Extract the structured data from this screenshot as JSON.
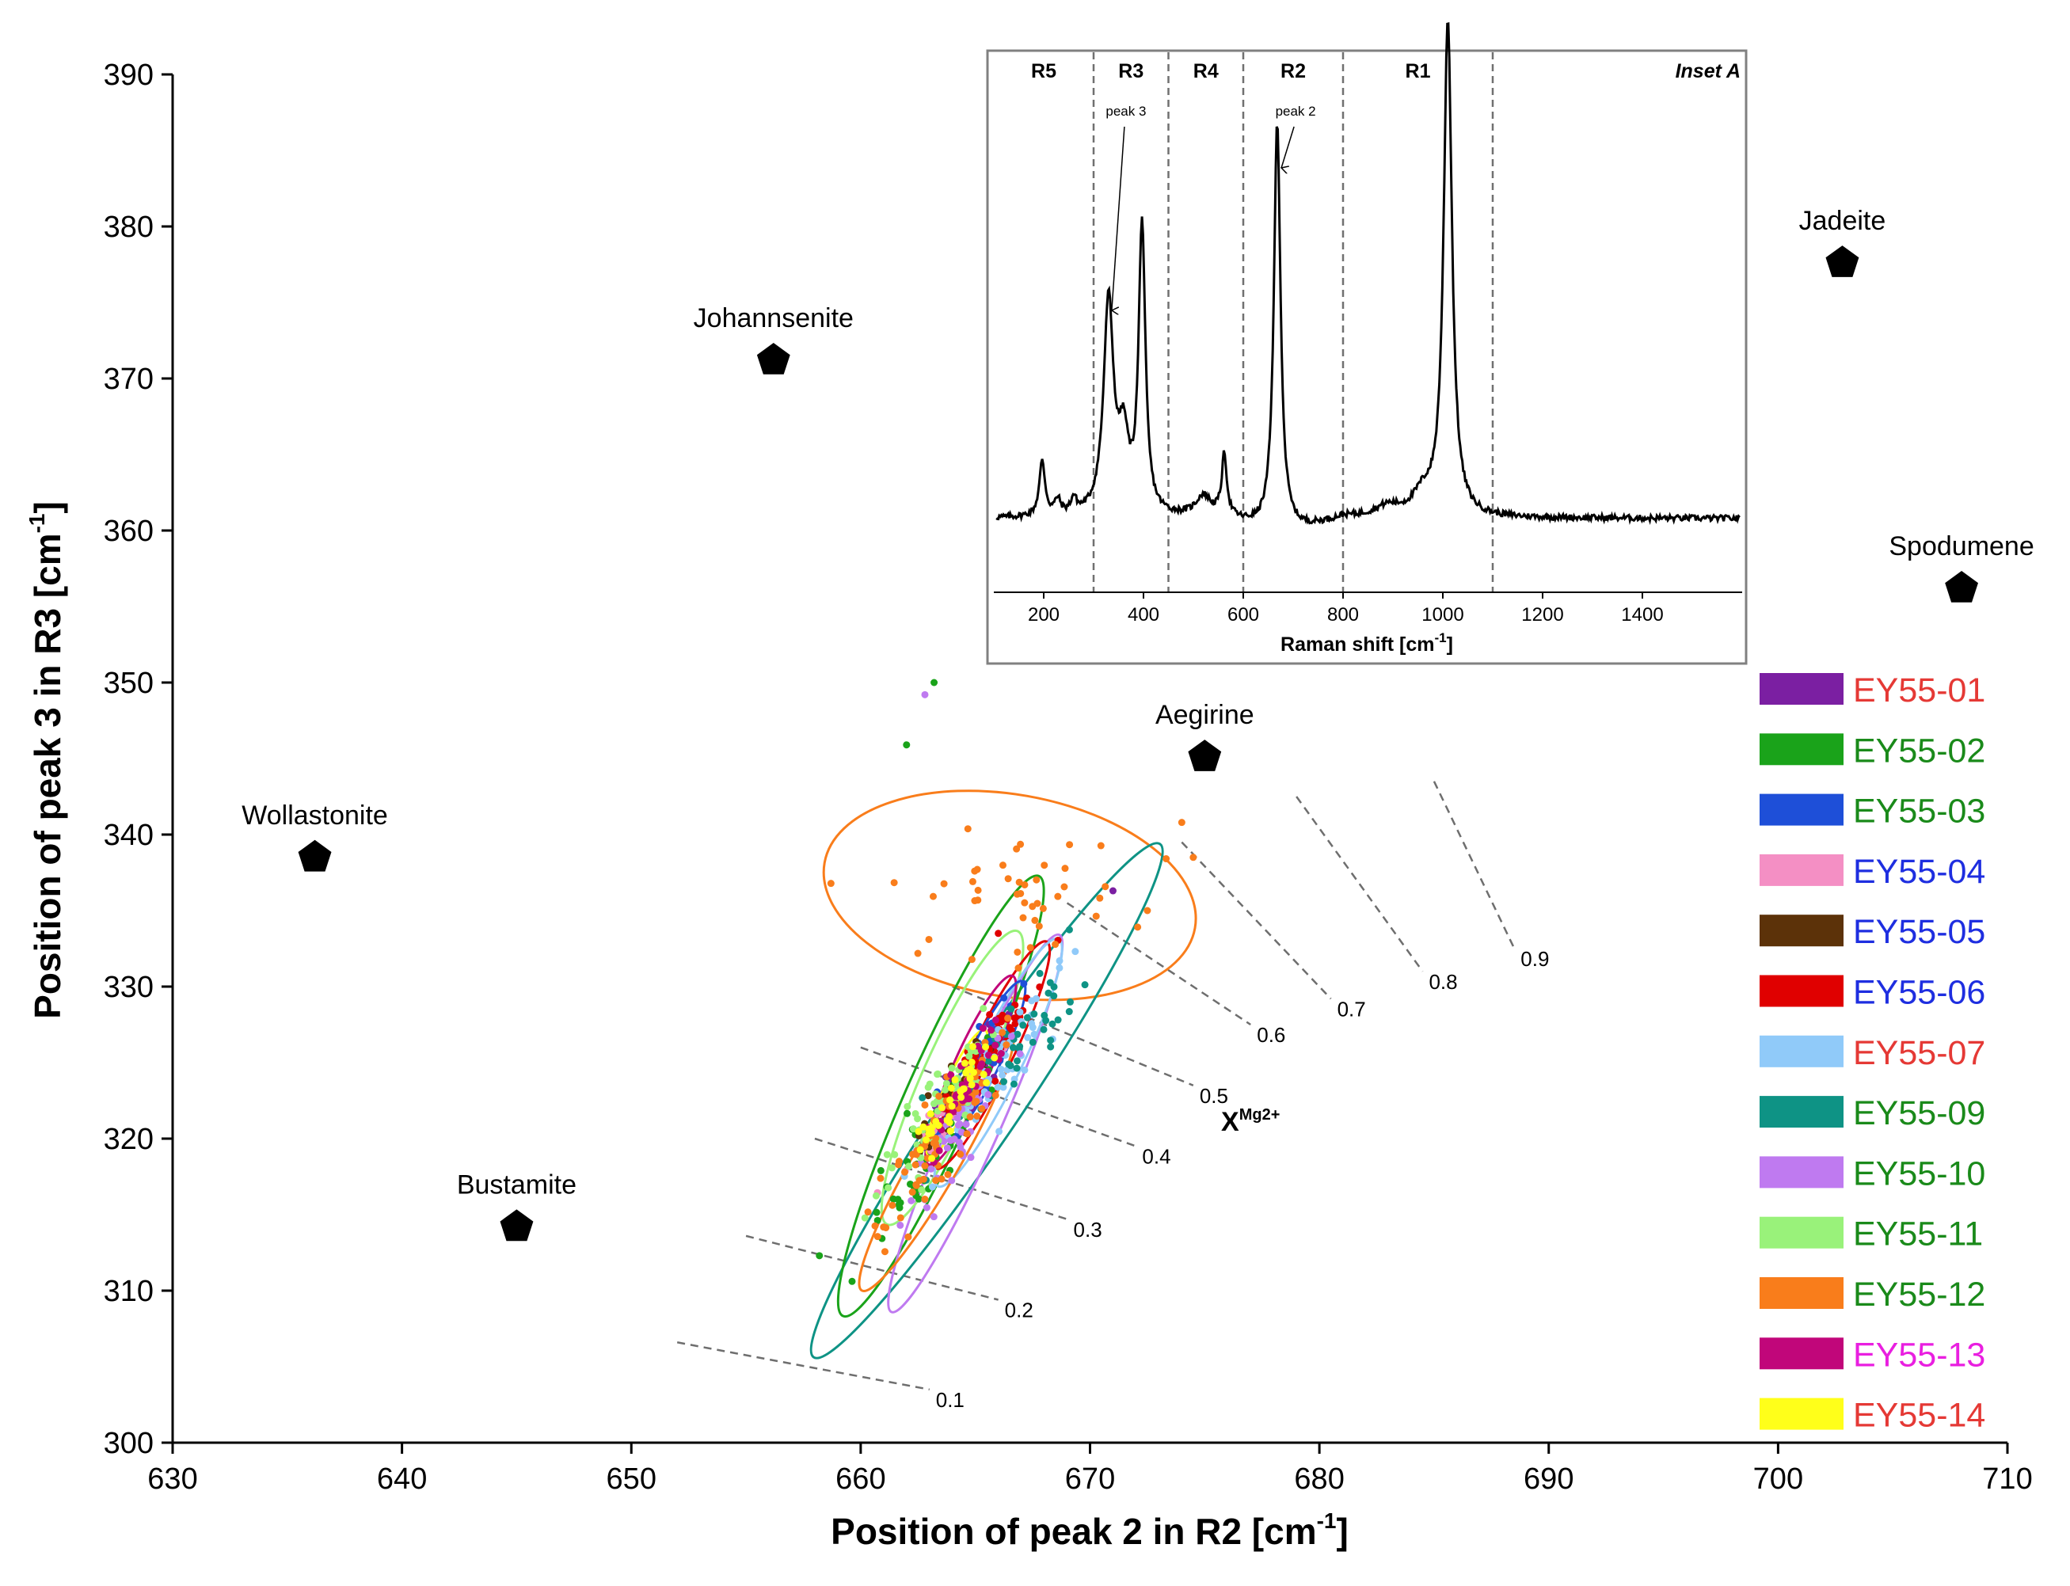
{
  "chart_data": {
    "type": "scatter",
    "xlabel": "Position of peak 2 in R2 [cm",
    "xlabel_sup": "-1",
    "xlabel_end": "]",
    "ylabel": "Position of peak 3 in R3 [cm",
    "ylabel_sup": "-1",
    "ylabel_end": "]",
    "xlim": [
      630,
      710
    ],
    "ylim": [
      300,
      390
    ],
    "xticks": [
      630,
      640,
      650,
      660,
      670,
      680,
      690,
      700,
      710
    ],
    "yticks": [
      300,
      310,
      320,
      330,
      340,
      350,
      360,
      370,
      380,
      390
    ],
    "minerals": [
      {
        "name": "Johannsenite",
        "x": 656.2,
        "y": 371.2
      },
      {
        "name": "Jadeite",
        "x": 702.8,
        "y": 377.6
      },
      {
        "name": "Spodumene",
        "x": 708.0,
        "y": 356.2
      },
      {
        "name": "Aegirine",
        "x": 675.0,
        "y": 345.1
      },
      {
        "name": "Wollastonite",
        "x": 636.2,
        "y": 338.5
      },
      {
        "name": "Bustamite",
        "x": 645.0,
        "y": 314.2
      }
    ],
    "iso_label": "X",
    "iso_label_sup": "Mg2+",
    "isolines": [
      {
        "label": "0.1",
        "x1": 652.0,
        "y1": 306.6,
        "x2": 663.0,
        "y2": 303.5
      },
      {
        "label": "0.2",
        "x1": 655.0,
        "y1": 313.6,
        "x2": 666.0,
        "y2": 309.4
      },
      {
        "label": "0.3",
        "x1": 658.0,
        "y1": 320.0,
        "x2": 669.0,
        "y2": 314.7
      },
      {
        "label": "0.4",
        "x1": 660.0,
        "y1": 326.0,
        "x2": 672.0,
        "y2": 319.5
      },
      {
        "label": "0.5",
        "x1": 664.0,
        "y1": 330.0,
        "x2": 674.5,
        "y2": 323.5
      },
      {
        "label": "0.6",
        "x1": 669.0,
        "y1": 335.5,
        "x2": 677.0,
        "y2": 327.5
      },
      {
        "label": "0.7",
        "x1": 674.0,
        "y1": 339.5,
        "x2": 680.5,
        "y2": 329.2
      },
      {
        "label": "0.8",
        "x1": 679.0,
        "y1": 342.5,
        "x2": 684.5,
        "y2": 331.0
      },
      {
        "label": "0.9",
        "x1": 685.0,
        "y1": 343.5,
        "x2": 688.5,
        "y2": 332.5
      }
    ],
    "series": [
      {
        "name": "EY55-01",
        "color": "#7b1fa2",
        "label_color": "#e53935",
        "cx": 664.6,
        "cy": 323.5,
        "sx": 0.9,
        "sy": 2.2,
        "n": 45
      },
      {
        "name": "EY55-02",
        "color": "#1aa31a",
        "label_color": "#1a8a1a",
        "cx": 663.2,
        "cy": 320.0,
        "sx": 1.4,
        "sy": 3.6,
        "n": 70
      },
      {
        "name": "EY55-03",
        "color": "#1e4fd8",
        "label_color": "#1a8a1a",
        "cx": 665.2,
        "cy": 325.0,
        "sx": 0.9,
        "sy": 2.2,
        "n": 40
      },
      {
        "name": "EY55-04",
        "color": "#f48fc4",
        "label_color": "#1e2ee0",
        "cx": 664.0,
        "cy": 322.5,
        "sx": 0.8,
        "sy": 2.0,
        "n": 35
      },
      {
        "name": "EY55-05",
        "color": "#5c3209",
        "label_color": "#1e2ee0",
        "cx": 664.2,
        "cy": 322.8,
        "sx": 0.8,
        "sy": 2.0,
        "n": 35
      },
      {
        "name": "EY55-06",
        "color": "#e00000",
        "label_color": "#1e2ee0",
        "cx": 665.5,
        "cy": 325.5,
        "sx": 1.0,
        "sy": 2.4,
        "n": 50
      },
      {
        "name": "EY55-07",
        "color": "#90caf9",
        "label_color": "#e53935",
        "cx": 666.0,
        "cy": 324.5,
        "sx": 1.2,
        "sy": 2.8,
        "n": 60
      },
      {
        "name": "EY55-09",
        "color": "#0e9385",
        "label_color": "#1a8a1a",
        "cx": 666.5,
        "cy": 325.2,
        "sx": 1.6,
        "sy": 3.2,
        "n": 45
      },
      {
        "name": "EY55-10",
        "color": "#bf7af0",
        "label_color": "#1a8a1a",
        "cx": 664.2,
        "cy": 320.5,
        "sx": 1.2,
        "sy": 3.0,
        "n": 45
      },
      {
        "name": "EY55-11",
        "color": "#99f27a",
        "label_color": "#1a8a1a",
        "cx": 663.5,
        "cy": 322.0,
        "sx": 1.1,
        "sy": 3.0,
        "n": 55
      },
      {
        "name": "EY55-12",
        "color": "#f97d1b",
        "label_color": "#1a8a1a",
        "cx": 663.3,
        "cy": 319.5,
        "sx": 1.3,
        "sy": 3.2,
        "n": 70
      },
      {
        "name": "EY55-13",
        "color": "#c1067a",
        "label_color": "#e91fe0",
        "cx": 664.5,
        "cy": 323.0,
        "sx": 0.8,
        "sy": 2.0,
        "n": 40
      },
      {
        "name": "EY55-14",
        "color": "#ffff1a",
        "label_color": "#e53935",
        "cx": 664.0,
        "cy": 322.5,
        "sx": 0.8,
        "sy": 2.0,
        "n": 40
      }
    ],
    "ellipses": [
      {
        "series": "EY55-12",
        "color": "#f97d1b",
        "cx": 666.5,
        "cy": 336.0,
        "rx": 8.2,
        "ry": 4.4,
        "angle_deg": -10
      },
      {
        "series": "EY55-09",
        "color": "#0e9385",
        "cx": 665.5,
        "cy": 322.5,
        "rx": 13.5,
        "ry": 1.6,
        "angle_deg": 56
      },
      {
        "series": "EY55-02",
        "color": "#1aa31a",
        "cx": 663.5,
        "cy": 322.8,
        "rx": 10.5,
        "ry": 1.5,
        "angle_deg": 66
      },
      {
        "series": "EY55-10",
        "color": "#bf7af0",
        "cx": 665.0,
        "cy": 321.0,
        "rx": 9.0,
        "ry": 1.1,
        "angle_deg": 66
      },
      {
        "series": "EY55-11",
        "color": "#99f27a",
        "cx": 664.0,
        "cy": 324.0,
        "rx": 7.0,
        "ry": 1.3,
        "angle_deg": 66
      },
      {
        "series": "EY55-06",
        "color": "#e00000",
        "cx": 665.7,
        "cy": 325.5,
        "rx": 5.5,
        "ry": 0.9,
        "angle_deg": 64
      },
      {
        "series": "EY55-07",
        "color": "#90caf9",
        "cx": 666.0,
        "cy": 325.0,
        "rx": 6.0,
        "ry": 1.0,
        "angle_deg": 64
      },
      {
        "series": "EY55-12",
        "color": "#f97d1b",
        "cx": 663.3,
        "cy": 318.5,
        "rx": 6.5,
        "ry": 1.0,
        "angle_deg": 60
      },
      {
        "series": "EY55-13",
        "color": "#c1067a",
        "cx": 664.8,
        "cy": 324.5,
        "rx": 4.5,
        "ry": 0.8,
        "angle_deg": 66
      },
      {
        "series": "EY55-14",
        "color": "#ffff1a",
        "cx": 664.2,
        "cy": 323.0,
        "rx": 3.0,
        "ry": 0.6,
        "angle_deg": 66
      },
      {
        "series": "EY55-03",
        "color": "#1e4fd8",
        "cx": 665.4,
        "cy": 325.2,
        "rx": 3.8,
        "ry": 0.7,
        "angle_deg": 64
      }
    ],
    "outliers": [
      {
        "series": "EY55-02",
        "color": "#1aa31a",
        "x": 663.2,
        "y": 350.0
      },
      {
        "series": "EY55-10",
        "color": "#bf7af0",
        "x": 662.8,
        "y": 349.2
      },
      {
        "series": "EY55-02",
        "color": "#1aa31a",
        "x": 662.0,
        "y": 345.9
      },
      {
        "series": "EY55-01",
        "color": "#7b1fa2",
        "x": 671.0,
        "y": 336.3
      },
      {
        "series": "EY55-06",
        "color": "#e00000",
        "x": 666.0,
        "y": 333.5
      },
      {
        "series": "EY55-12",
        "color": "#f97d1b",
        "x": 674.0,
        "y": 340.8
      },
      {
        "series": "EY55-12",
        "color": "#f97d1b",
        "x": 674.5,
        "y": 338.5
      },
      {
        "series": "EY55-12",
        "color": "#f97d1b",
        "x": 672.5,
        "y": 335.0
      },
      {
        "series": "EY55-02",
        "color": "#1aa31a",
        "x": 658.2,
        "y": 312.3
      }
    ],
    "inset": {
      "title": "Inset A",
      "type": "line",
      "xlabel": "Raman shift [cm",
      "xlabel_sup": "-1",
      "xlabel_end": "]",
      "xlim": [
        100,
        1600
      ],
      "xticks": [
        200,
        400,
        600,
        800,
        1000,
        1200,
        1400
      ],
      "ylim": [
        0,
        100
      ],
      "regions": [
        "R5",
        "R3",
        "R4",
        "R2",
        "R1"
      ],
      "region_bounds": [
        300,
        450,
        600,
        800,
        1100
      ],
      "annotations": [
        {
          "text": "peak 3",
          "x": 330
        },
        {
          "text": "peak 2",
          "x": 670
        }
      ],
      "baseline": 8,
      "peaks": [
        {
          "x": 197,
          "h": 11,
          "w": 7
        },
        {
          "x": 228,
          "h": 3,
          "w": 7
        },
        {
          "x": 260,
          "h": 3,
          "w": 7
        },
        {
          "x": 330,
          "h": 43,
          "w": 12
        },
        {
          "x": 360,
          "h": 14,
          "w": 12
        },
        {
          "x": 397,
          "h": 58,
          "w": 8
        },
        {
          "x": 520,
          "h": 4,
          "w": 18
        },
        {
          "x": 562,
          "h": 12,
          "w": 6
        },
        {
          "x": 668,
          "h": 82,
          "w": 8
        },
        {
          "x": 890,
          "h": 2,
          "w": 30
        },
        {
          "x": 960,
          "h": 4,
          "w": 25
        },
        {
          "x": 1010,
          "h": 100,
          "w": 10
        }
      ]
    }
  }
}
